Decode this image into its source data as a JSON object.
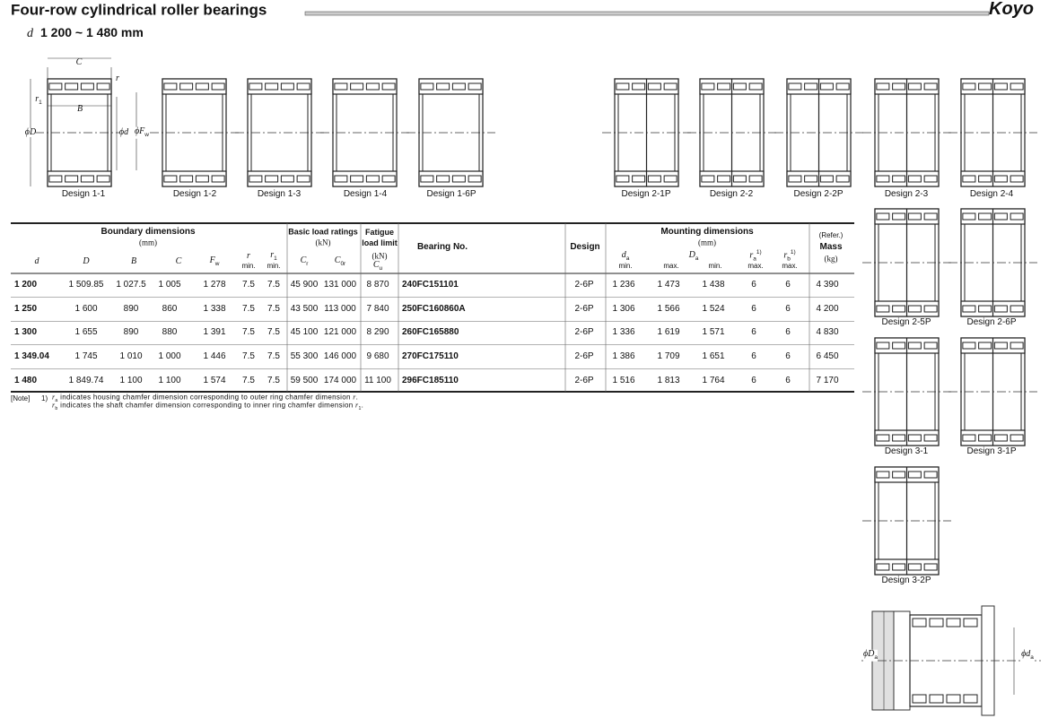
{
  "header": {
    "title": "Four-row cylindrical roller bearings",
    "range_symbol": "d",
    "range": "1 200 ~ 1 480 mm",
    "brand": "Koyo"
  },
  "diagram_labels": {
    "C": "C",
    "r": "r",
    "r1": {
      "sym": "r",
      "sub": "1"
    },
    "B": "B",
    "D": {
      "sym": "ϕD"
    },
    "d": {
      "sym": "ϕd"
    },
    "Fw": {
      "sym": "ϕF",
      "sub": "w"
    }
  },
  "designs": [
    "Design 1-1",
    "Design 1-2",
    "Design 1-3",
    "Design 1-4",
    "Design 1-6P",
    "Design 2-1P",
    "Design 2-2",
    "Design 2-2P",
    "Design 2-3",
    "Design 2-4",
    "Design 2-5P",
    "Design 2-6P",
    "Design 3-1",
    "Design 3-1P",
    "Design 3-2P"
  ],
  "table": {
    "groups": [
      {
        "title": "Boundary dimensions",
        "unit": "(mm)"
      },
      {
        "title": "Basic load ratings",
        "unit": "(kN)"
      },
      {
        "title": "Fatigue load limit",
        "unit": "(kN)"
      },
      {
        "title": "Mounting dimensions",
        "unit": "(mm)"
      }
    ],
    "bearing_no": "Bearing No.",
    "design": "Design",
    "mass": {
      "refer": "(Refer.)",
      "title": "Mass",
      "unit": "(kg)"
    },
    "columns": [
      {
        "sym": "d"
      },
      {
        "sym": "D"
      },
      {
        "sym": "B"
      },
      {
        "sym": "C"
      },
      {
        "sym": "F",
        "sub": "w"
      },
      {
        "sym": "r",
        "limit": "min."
      },
      {
        "sym": "r",
        "sub": "1",
        "limit": "min."
      },
      {
        "sym": "C",
        "sub": "r"
      },
      {
        "sym": "C",
        "sub": "0r"
      },
      {
        "sym": "C",
        "sub": "u"
      }
    ],
    "mounting_columns": [
      {
        "sym": "d",
        "sub": "a",
        "limit": "min."
      },
      {
        "limit": "max."
      },
      {
        "sym": "D",
        "sub": "a"
      },
      {
        "limit": "min."
      },
      {
        "sym": "r",
        "sub": "a",
        "sup": "1)",
        "limit": "max."
      },
      {
        "sym": "r",
        "sub": "b",
        "sup": "1)",
        "limit": "max."
      }
    ],
    "rows": [
      [
        "1 200",
        "1 509.85",
        "1 027.5",
        "1 005",
        "1 278",
        "7.5",
        "7.5",
        "45 900",
        "131 000",
        "8 870",
        "240FC151101",
        "2-6P",
        "1 236",
        "1 473",
        "1 438",
        "6",
        "6",
        "4 390"
      ],
      [
        "1 250",
        "1 600",
        "890",
        "860",
        "1 338",
        "7.5",
        "7.5",
        "43 500",
        "113 000",
        "7 840",
        "250FC160860A",
        "2-6P",
        "1 306",
        "1 566",
        "1 524",
        "6",
        "6",
        "4 200"
      ],
      [
        "1 300",
        "1 655",
        "890",
        "880",
        "1 391",
        "7.5",
        "7.5",
        "45 100",
        "121 000",
        "8 290",
        "260FC165880",
        "2-6P",
        "1 336",
        "1 619",
        "1 571",
        "6",
        "6",
        "4 830"
      ],
      [
        "1 349.04",
        "1 745",
        "1 010",
        "1 000",
        "1 446",
        "7.5",
        "7.5",
        "55 300",
        "146 000",
        "9 680",
        "270FC175110",
        "2-6P",
        "1 386",
        "1 709",
        "1 651",
        "6",
        "6",
        "6 450"
      ],
      [
        "1 480",
        "1 849.74",
        "1 100",
        "1 100",
        "1 574",
        "7.5",
        "7.5",
        "59 500",
        "174 000",
        "11 100",
        "296FC185110",
        "2-6P",
        "1 516",
        "1 813",
        "1 764",
        "6",
        "6",
        "7 170"
      ]
    ]
  },
  "note": {
    "label": "[Note]",
    "num": "1)",
    "lines": [
      [
        {
          "text": "r",
          "sub": "a"
        },
        {
          "text": " indicates housing chamfer dimension corresponding to outer ring chamfer dimension "
        },
        {
          "text": "r"
        },
        {
          "text": "."
        }
      ],
      [
        {
          "text": "r",
          "sub": "b"
        },
        {
          "text": " indicates the shaft chamfer dimension corresponding to inner ring chamfer dimension "
        },
        {
          "text": "r",
          "sub": "1"
        },
        {
          "text": "."
        }
      ]
    ]
  },
  "mounting_labels": {
    "Da": {
      "sym": "ϕD",
      "sub": "a"
    },
    "da": {
      "sym": "ϕd",
      "sub": "a"
    }
  }
}
